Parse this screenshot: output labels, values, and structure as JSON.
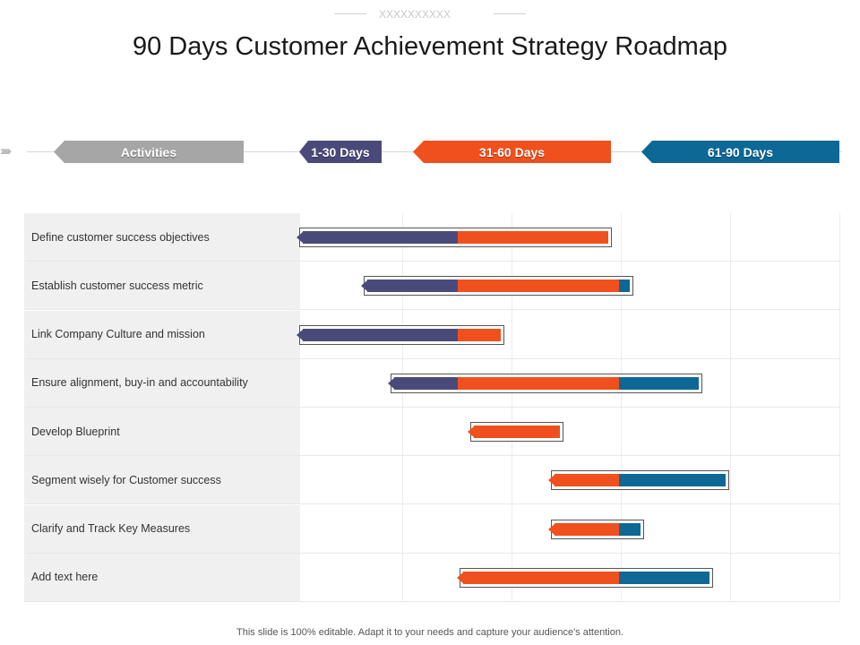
{
  "decoration": {
    "text": "XXXXXXXXXX"
  },
  "title": "90 Days Customer Achievement Strategy Roadmap",
  "header": {
    "activities_label": "Activities",
    "phases": [
      {
        "label": "1-30 Days",
        "color": "#4a4a7a"
      },
      {
        "label": "31-60 Days",
        "color": "#f0501e"
      },
      {
        "label": "61-90 Days",
        "color": "#0d6896"
      }
    ],
    "activities_color": "#a6a6a6"
  },
  "chart_data": {
    "type": "gantt",
    "xlim": [
      0,
      90
    ],
    "rows": [
      {
        "label": "Define  customer success objectives",
        "start": 1,
        "end": 58
      },
      {
        "label": "Establish customer success metric",
        "start": 13,
        "end": 62
      },
      {
        "label": "Link Company Culture and mission",
        "start": 1,
        "end": 38
      },
      {
        "label": "Ensure alignment, buy-in and accountability",
        "start": 18,
        "end": 75
      },
      {
        "label": "Develop  Blueprint",
        "start": 33,
        "end": 49
      },
      {
        "label": "Segment wisely for Customer success",
        "start": 48,
        "end": 80
      },
      {
        "label": "Clarify and Track Key Measures",
        "start": 48,
        "end": 64
      },
      {
        "label": "Add text here",
        "start": 31,
        "end": 77
      }
    ],
    "phase_boundaries": [
      0,
      30,
      60,
      90
    ]
  },
  "footer": "This slide is 100% editable. Adapt it to your needs and capture your audience's attention."
}
